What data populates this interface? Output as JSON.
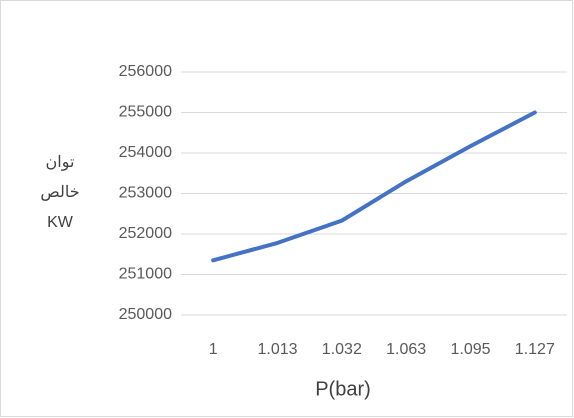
{
  "chart_data": {
    "type": "line",
    "ylabel": [
      "توان",
      "خالص",
      "KW"
    ],
    "xlabel": "P(bar)",
    "categories": [
      "1",
      "1.013",
      "1.032",
      "1.063",
      "1.095",
      "1.127"
    ],
    "series": [
      {
        "color": "#4472c4",
        "values": [
          251350,
          251780,
          252330,
          253300,
          254170,
          255000
        ]
      }
    ],
    "ylim": [
      250000,
      256000
    ],
    "yticks": [
      250000,
      251000,
      252000,
      253000,
      254000,
      255000,
      256000
    ],
    "grid": true
  }
}
